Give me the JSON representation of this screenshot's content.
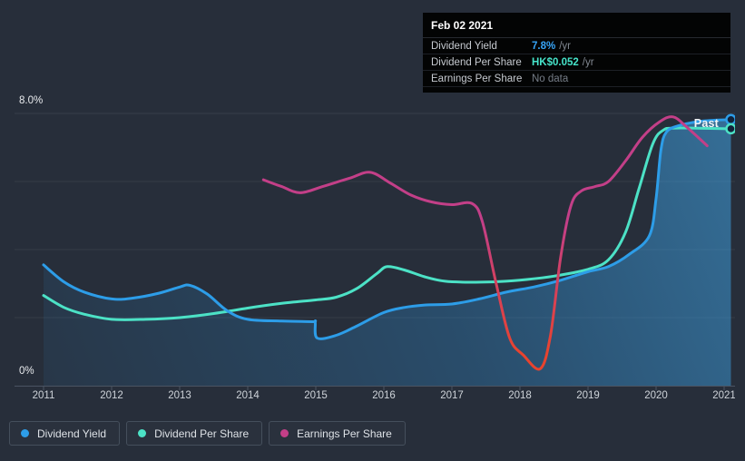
{
  "tooltip": {
    "date": "Feb 02 2021",
    "rows": [
      {
        "label": "Dividend Yield",
        "value": "7.8%",
        "suffix": "/yr",
        "value_color": "#37a5f8",
        "muted": false
      },
      {
        "label": "Dividend Per Share",
        "value": "HK$0.052",
        "suffix": "/yr",
        "value_color": "#46e4ca",
        "muted": false
      },
      {
        "label": "Earnings Per Share",
        "value": "No data",
        "suffix": "",
        "value_color": "#767d87",
        "muted": true
      }
    ]
  },
  "chart": {
    "past_label": "Past",
    "y_axis": {
      "top_label": "8.0%",
      "bottom_label": "0%"
    }
  },
  "legend": [
    {
      "label": "Dividend Yield",
      "color": "#2d9de8"
    },
    {
      "label": "Dividend Per Share",
      "color": "#4ce2c6"
    },
    {
      "label": "Earnings Per Share",
      "color": "#c33f88"
    }
  ],
  "chart_data": {
    "type": "line",
    "title": "Dividend history (yield scale 0% - 8%)",
    "ylim": [
      0,
      8
    ],
    "y_tick_labels": [
      "0%",
      "8.0%"
    ],
    "x_ticks": [
      2011,
      2012,
      2013,
      2014,
      2015,
      2016,
      2017,
      2018,
      2019,
      2020,
      2021
    ],
    "grid": "horizontal",
    "legend_position": "bottom-left",
    "annotations": {
      "past_label": "Past"
    },
    "series": [
      {
        "name": "Dividend Yield",
        "color": "#2d9de8",
        "area": true,
        "end_marker": true,
        "points": [
          [
            2011,
            3.55
          ],
          [
            2011.3,
            3.05
          ],
          [
            2011.6,
            2.75
          ],
          [
            2012,
            2.55
          ],
          [
            2012.3,
            2.57
          ],
          [
            2012.7,
            2.72
          ],
          [
            2013,
            2.9
          ],
          [
            2013.15,
            2.95
          ],
          [
            2013.4,
            2.7
          ],
          [
            2013.7,
            2.2
          ],
          [
            2014,
            1.95
          ],
          [
            2014.5,
            1.9
          ],
          [
            2014.95,
            1.88
          ],
          [
            2014.99,
            1.87
          ],
          [
            2015.02,
            1.4
          ],
          [
            2015.3,
            1.48
          ],
          [
            2015.6,
            1.75
          ],
          [
            2016,
            2.15
          ],
          [
            2016.3,
            2.3
          ],
          [
            2016.6,
            2.37
          ],
          [
            2017,
            2.4
          ],
          [
            2017.4,
            2.55
          ],
          [
            2017.8,
            2.75
          ],
          [
            2018.2,
            2.9
          ],
          [
            2018.6,
            3.1
          ],
          [
            2019,
            3.35
          ],
          [
            2019.3,
            3.5
          ],
          [
            2019.6,
            3.85
          ],
          [
            2019.9,
            4.4
          ],
          [
            2020,
            5.5
          ],
          [
            2020.07,
            6.9
          ],
          [
            2020.15,
            7.45
          ],
          [
            2020.35,
            7.65
          ],
          [
            2020.7,
            7.78
          ],
          [
            2021.1,
            7.82
          ]
        ]
      },
      {
        "name": "Dividend Per Share",
        "color": "#4ce2c6",
        "area": false,
        "end_marker": true,
        "points": [
          [
            2011,
            2.65
          ],
          [
            2011.3,
            2.3
          ],
          [
            2011.6,
            2.1
          ],
          [
            2012,
            1.95
          ],
          [
            2012.5,
            1.95
          ],
          [
            2013,
            2.0
          ],
          [
            2013.5,
            2.12
          ],
          [
            2014,
            2.28
          ],
          [
            2014.5,
            2.42
          ],
          [
            2015,
            2.52
          ],
          [
            2015.3,
            2.6
          ],
          [
            2015.6,
            2.85
          ],
          [
            2015.9,
            3.3
          ],
          [
            2016.05,
            3.5
          ],
          [
            2016.3,
            3.4
          ],
          [
            2016.6,
            3.2
          ],
          [
            2016.9,
            3.07
          ],
          [
            2017.3,
            3.04
          ],
          [
            2017.7,
            3.06
          ],
          [
            2018.1,
            3.12
          ],
          [
            2018.5,
            3.22
          ],
          [
            2019,
            3.42
          ],
          [
            2019.3,
            3.7
          ],
          [
            2019.55,
            4.5
          ],
          [
            2019.75,
            5.8
          ],
          [
            2019.95,
            7.1
          ],
          [
            2020.1,
            7.5
          ],
          [
            2020.3,
            7.57
          ],
          [
            2021.1,
            7.55
          ]
        ]
      },
      {
        "name": "Earnings Per Share",
        "color": "#c33f88",
        "color_negative": "#e8432e",
        "area": false,
        "end_marker": false,
        "points": [
          [
            2014.23,
            6.05
          ],
          [
            2014.5,
            5.85
          ],
          [
            2014.77,
            5.67
          ],
          [
            2015.1,
            5.85
          ],
          [
            2015.5,
            6.1
          ],
          [
            2015.8,
            6.27
          ],
          [
            2016.1,
            5.95
          ],
          [
            2016.4,
            5.6
          ],
          [
            2016.7,
            5.4
          ],
          [
            2017,
            5.32
          ],
          [
            2017.3,
            5.35
          ],
          [
            2017.45,
            4.8
          ],
          [
            2017.65,
            3.0
          ],
          [
            2017.85,
            1.4
          ],
          [
            2018.05,
            0.9
          ],
          [
            2018.3,
            0.5
          ],
          [
            2018.45,
            1.5
          ],
          [
            2018.6,
            3.8
          ],
          [
            2018.75,
            5.3
          ],
          [
            2018.9,
            5.72
          ],
          [
            2019.1,
            5.85
          ],
          [
            2019.3,
            6.0
          ],
          [
            2019.55,
            6.6
          ],
          [
            2019.8,
            7.3
          ],
          [
            2020.05,
            7.75
          ],
          [
            2020.25,
            7.9
          ],
          [
            2020.45,
            7.6
          ],
          [
            2020.75,
            7.05
          ]
        ]
      }
    ]
  }
}
